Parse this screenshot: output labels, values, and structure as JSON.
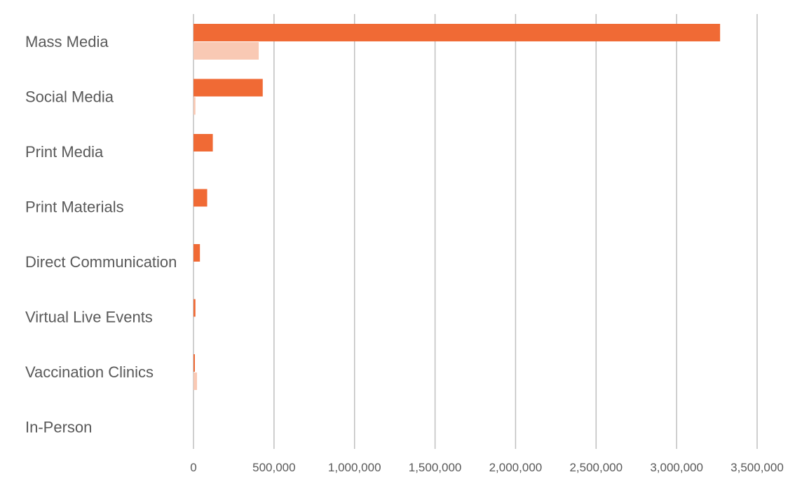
{
  "chart_data": {
    "type": "bar",
    "orientation": "horizontal",
    "title": "",
    "xlabel": "",
    "ylabel": "",
    "categories": [
      "Mass Media",
      "Social Media",
      "Print Media",
      "Print Materials",
      "Direct Communication",
      "Virtual Live Events",
      "Vaccination Clinics",
      "In-Person"
    ],
    "series": [
      {
        "color": "#F06A35",
        "values": [
          3270000,
          430000,
          120000,
          85000,
          40000,
          12000,
          3000,
          0
        ]
      },
      {
        "color": "#F9C9B4",
        "values": [
          405000,
          12000,
          0,
          0,
          0,
          0,
          22000,
          0
        ]
      }
    ],
    "xlim": [
      0,
      3500000
    ],
    "xticks": [
      0,
      500000,
      1000000,
      1500000,
      2000000,
      2500000,
      3000000,
      3500000
    ],
    "xtick_labels": [
      "0",
      "500,000",
      "1,000,000",
      "1,500,000",
      "2,000,000",
      "2,500,000",
      "3,000,000",
      "3,500,000"
    ],
    "grid": "vertical",
    "gridline_color": "#BFBFBF",
    "legend": "none"
  }
}
